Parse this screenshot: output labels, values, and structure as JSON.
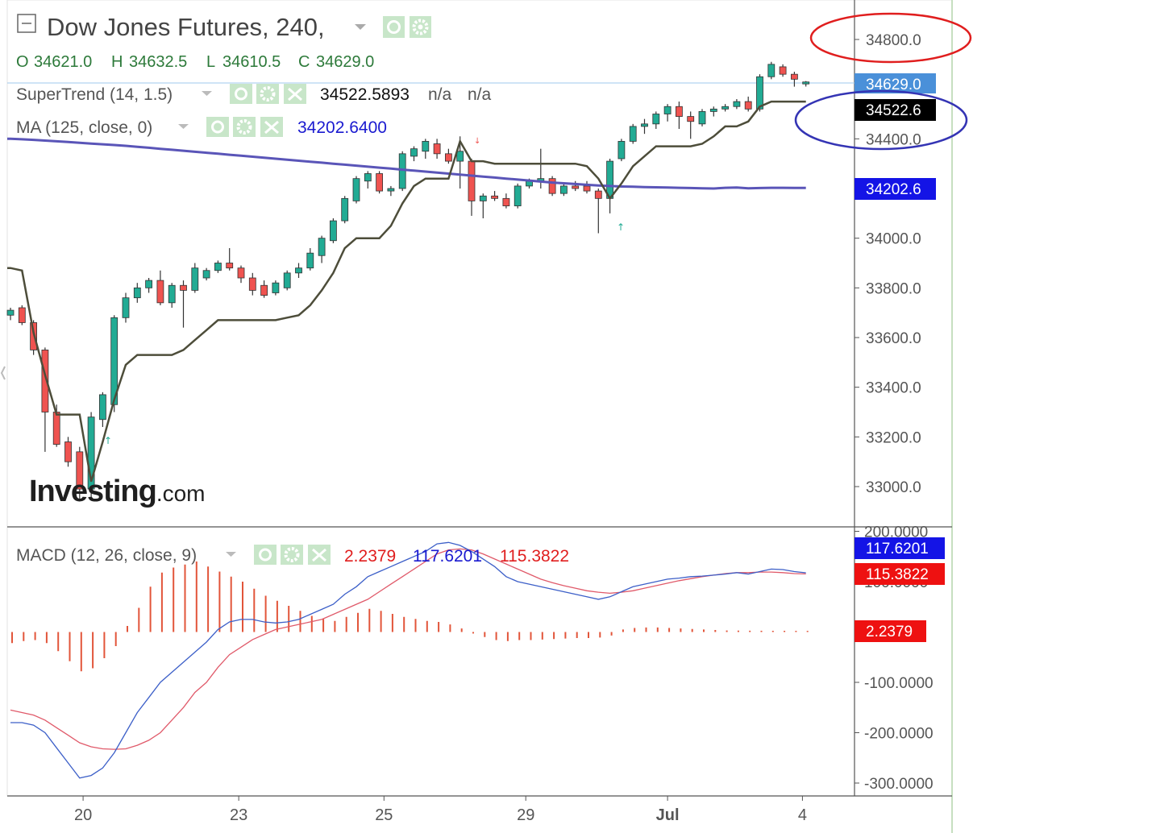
{
  "header": {
    "symbol_title": "Dow Jones Futures, 240,",
    "ohlc": {
      "o_label": "O",
      "o_value": "34621.0",
      "h_label": "H",
      "h_value": "34632.5",
      "l_label": "L",
      "l_value": "34610.5",
      "c_label": "C",
      "c_value": "34629.0"
    }
  },
  "indicators": {
    "supertrend": {
      "label": "SuperTrend (14, 1.5)",
      "value": "34522.5893",
      "extra1": "n/a",
      "extra2": "n/a"
    },
    "ma": {
      "label": "MA (125, close, 0)",
      "value": "34202.6400"
    },
    "macd": {
      "label": "MACD (12, 26, close, 9)",
      "hist": "2.2379",
      "macd": "117.6201",
      "signal": "115.3822"
    }
  },
  "price_badges": {
    "last": "34629.0",
    "supertrend": "34522.6",
    "ma": "34202.6",
    "macd": "117.6201",
    "signal": "115.3822",
    "hist": "2.2379"
  },
  "colors": {
    "up": "#22ab94",
    "down": "#ef5350",
    "supertrend": "#4d4d3a",
    "ma": "#5a55b8",
    "macd_line": "#3c5fc8",
    "signal_line": "#e05a6a",
    "hist": "#e2553a",
    "last_badge": "#4a90d9",
    "ma_badge": "#1414e6",
    "hist_badge": "#ee1111"
  },
  "watermark": "Investing.com",
  "chart_data": [
    {
      "type": "candlestick",
      "title": "Dow Jones Futures, 240,",
      "x_tick_labels": [
        "20",
        "23",
        "25",
        "29",
        "Jul",
        "4"
      ],
      "y_tick_labels": [
        "34800.0",
        "34629.0",
        "34400.0",
        "34000.0",
        "33800.0",
        "33600.0",
        "33400.0",
        "33200.0",
        "33000.0"
      ],
      "ylim": [
        32850,
        34950
      ],
      "candles": [
        {
          "o": 33690,
          "h": 33720,
          "l": 33670,
          "c": 33710
        },
        {
          "o": 33720,
          "h": 33730,
          "l": 33650,
          "c": 33660
        },
        {
          "o": 33660,
          "h": 33670,
          "l": 33530,
          "c": 33550
        },
        {
          "o": 33550,
          "h": 33560,
          "l": 33140,
          "c": 33300
        },
        {
          "o": 33300,
          "h": 33330,
          "l": 33160,
          "c": 33170
        },
        {
          "o": 33180,
          "h": 33200,
          "l": 33080,
          "c": 33100
        },
        {
          "o": 33140,
          "h": 33160,
          "l": 32950,
          "c": 32990
        },
        {
          "o": 32990,
          "h": 33300,
          "l": 32960,
          "c": 33280
        },
        {
          "o": 33270,
          "h": 33380,
          "l": 33240,
          "c": 33370
        },
        {
          "o": 33330,
          "h": 33690,
          "l": 33300,
          "c": 33680
        },
        {
          "o": 33680,
          "h": 33780,
          "l": 33660,
          "c": 33760
        },
        {
          "o": 33760,
          "h": 33820,
          "l": 33740,
          "c": 33800
        },
        {
          "o": 33800,
          "h": 33840,
          "l": 33780,
          "c": 33830
        },
        {
          "o": 33830,
          "h": 33870,
          "l": 33730,
          "c": 33740
        },
        {
          "o": 33740,
          "h": 33820,
          "l": 33720,
          "c": 33810
        },
        {
          "o": 33810,
          "h": 33830,
          "l": 33640,
          "c": 33790
        },
        {
          "o": 33790,
          "h": 33900,
          "l": 33780,
          "c": 33880
        },
        {
          "o": 33840,
          "h": 33880,
          "l": 33830,
          "c": 33870
        },
        {
          "o": 33870,
          "h": 33910,
          "l": 33860,
          "c": 33900
        },
        {
          "o": 33900,
          "h": 33960,
          "l": 33870,
          "c": 33880
        },
        {
          "o": 33880,
          "h": 33890,
          "l": 33820,
          "c": 33840
        },
        {
          "o": 33840,
          "h": 33860,
          "l": 33770,
          "c": 33790
        },
        {
          "o": 33810,
          "h": 33830,
          "l": 33760,
          "c": 33770
        },
        {
          "o": 33780,
          "h": 33830,
          "l": 33770,
          "c": 33820
        },
        {
          "o": 33800,
          "h": 33870,
          "l": 33790,
          "c": 33860
        },
        {
          "o": 33860,
          "h": 33900,
          "l": 33840,
          "c": 33880
        },
        {
          "o": 33880,
          "h": 33960,
          "l": 33870,
          "c": 33940
        },
        {
          "o": 33930,
          "h": 34010,
          "l": 33900,
          "c": 34000
        },
        {
          "o": 33990,
          "h": 34080,
          "l": 33980,
          "c": 34070
        },
        {
          "o": 34070,
          "h": 34170,
          "l": 34060,
          "c": 34160
        },
        {
          "o": 34150,
          "h": 34250,
          "l": 34140,
          "c": 34240
        },
        {
          "o": 34230,
          "h": 34270,
          "l": 34200,
          "c": 34260
        },
        {
          "o": 34260,
          "h": 34270,
          "l": 34180,
          "c": 34190
        },
        {
          "o": 34190,
          "h": 34210,
          "l": 34170,
          "c": 34200
        },
        {
          "o": 34200,
          "h": 34350,
          "l": 34190,
          "c": 34340
        },
        {
          "o": 34330,
          "h": 34370,
          "l": 34310,
          "c": 34360
        },
        {
          "o": 34350,
          "h": 34400,
          "l": 34320,
          "c": 34390
        },
        {
          "o": 34380,
          "h": 34400,
          "l": 34320,
          "c": 34340
        },
        {
          "o": 34340,
          "h": 34360,
          "l": 34300,
          "c": 34310
        },
        {
          "o": 34310,
          "h": 34410,
          "l": 34200,
          "c": 34350
        },
        {
          "o": 34310,
          "h": 34320,
          "l": 34090,
          "c": 34150
        },
        {
          "o": 34150,
          "h": 34180,
          "l": 34080,
          "c": 34170
        },
        {
          "o": 34170,
          "h": 34190,
          "l": 34150,
          "c": 34160
        },
        {
          "o": 34160,
          "h": 34180,
          "l": 34120,
          "c": 34130
        },
        {
          "o": 34130,
          "h": 34220,
          "l": 34120,
          "c": 34210
        },
        {
          "o": 34210,
          "h": 34240,
          "l": 34200,
          "c": 34230
        },
        {
          "o": 34230,
          "h": 34360,
          "l": 34200,
          "c": 34240
        },
        {
          "o": 34240,
          "h": 34250,
          "l": 34170,
          "c": 34180
        },
        {
          "o": 34180,
          "h": 34220,
          "l": 34170,
          "c": 34210
        },
        {
          "o": 34210,
          "h": 34230,
          "l": 34190,
          "c": 34200
        },
        {
          "o": 34210,
          "h": 34230,
          "l": 34180,
          "c": 34190
        },
        {
          "o": 34190,
          "h": 34200,
          "l": 34020,
          "c": 34160
        },
        {
          "o": 34160,
          "h": 34320,
          "l": 34100,
          "c": 34310
        },
        {
          "o": 34320,
          "h": 34400,
          "l": 34310,
          "c": 34390
        },
        {
          "o": 34390,
          "h": 34460,
          "l": 34380,
          "c": 34450
        },
        {
          "o": 34450,
          "h": 34480,
          "l": 34420,
          "c": 34460
        },
        {
          "o": 34460,
          "h": 34510,
          "l": 34440,
          "c": 34500
        },
        {
          "o": 34500,
          "h": 34540,
          "l": 34470,
          "c": 34530
        },
        {
          "o": 34530,
          "h": 34550,
          "l": 34440,
          "c": 34490
        },
        {
          "o": 34490,
          "h": 34510,
          "l": 34400,
          "c": 34470
        },
        {
          "o": 34460,
          "h": 34520,
          "l": 34450,
          "c": 34510
        },
        {
          "o": 34510,
          "h": 34530,
          "l": 34490,
          "c": 34520
        },
        {
          "o": 34520,
          "h": 34540,
          "l": 34510,
          "c": 34530
        },
        {
          "o": 34530,
          "h": 34560,
          "l": 34520,
          "c": 34550
        },
        {
          "o": 34550,
          "h": 34570,
          "l": 34510,
          "c": 34520
        },
        {
          "o": 34520,
          "h": 34660,
          "l": 34510,
          "c": 34650
        },
        {
          "o": 34650,
          "h": 34710,
          "l": 34640,
          "c": 34700
        },
        {
          "o": 34690,
          "h": 34700,
          "l": 34650,
          "c": 34660
        },
        {
          "o": 34660,
          "h": 34670,
          "l": 34610,
          "c": 34640
        },
        {
          "o": 34621,
          "h": 34632.5,
          "l": 34610.5,
          "c": 34629
        }
      ],
      "supertrend": [
        33880,
        33870,
        33620,
        33450,
        33290,
        33290,
        33290,
        33020,
        33180,
        33350,
        33490,
        33530,
        33530,
        33530,
        33530,
        33550,
        33590,
        33630,
        33670,
        33670,
        33670,
        33670,
        33670,
        33670,
        33680,
        33690,
        33730,
        33790,
        33860,
        33960,
        34000,
        34000,
        34000,
        34050,
        34140,
        34210,
        34240,
        34240,
        34240,
        34390,
        34310,
        34310,
        34300,
        34300,
        34300,
        34300,
        34300,
        34300,
        34300,
        34300,
        34290,
        34240,
        34160,
        34220,
        34290,
        34330,
        34370,
        34370,
        34370,
        34370,
        34380,
        34410,
        34450,
        34450,
        34470,
        34530,
        34550,
        34550,
        34550,
        34550
      ],
      "ma": [
        34400,
        34398,
        34396,
        34393,
        34390,
        34387,
        34384,
        34381,
        34378,
        34375,
        34372,
        34368,
        34364,
        34360,
        34356,
        34352,
        34348,
        34344,
        34340,
        34336,
        34332,
        34328,
        34324,
        34320,
        34316,
        34312,
        34308,
        34304,
        34300,
        34296,
        34292,
        34288,
        34284,
        34280,
        34276,
        34272,
        34268,
        34264,
        34260,
        34256,
        34252,
        34248,
        34244,
        34240,
        34236,
        34232,
        34228,
        34224,
        34221,
        34218,
        34215,
        34212,
        34210,
        34208,
        34207,
        34206,
        34205,
        34204,
        34203,
        34202,
        34201,
        34200,
        34203,
        34204,
        34201,
        34202,
        34203,
        34203,
        34202.6,
        34202.6
      ]
    },
    {
      "type": "line",
      "title": "MACD (12, 26, close, 9)",
      "y_tick_labels": [
        "200.0000",
        "100.0000",
        "-100.0000",
        "-200.0000",
        "-300.0000"
      ],
      "ylim": [
        -330,
        230
      ],
      "series": [
        {
          "name": "MACD",
          "values": [
            -180,
            -180,
            -185,
            -200,
            -230,
            -260,
            -290,
            -285,
            -270,
            -240,
            -200,
            -160,
            -130,
            -100,
            -80,
            -60,
            -40,
            -20,
            5,
            20,
            25,
            25,
            20,
            18,
            20,
            25,
            35,
            45,
            55,
            75,
            90,
            110,
            120,
            130,
            140,
            150,
            160,
            175,
            178,
            172,
            160,
            145,
            130,
            110,
            100,
            95,
            90,
            85,
            80,
            75,
            70,
            65,
            70,
            80,
            90,
            95,
            100,
            105,
            107,
            110,
            111,
            113,
            115,
            118,
            115,
            120,
            125,
            124,
            120,
            117.6
          ]
        },
        {
          "name": "Signal",
          "values": [
            -155,
            -160,
            -165,
            -175,
            -190,
            -205,
            -220,
            -228,
            -232,
            -233,
            -232,
            -225,
            -215,
            -200,
            -175,
            -150,
            -120,
            -100,
            -70,
            -45,
            -30,
            -15,
            -5,
            5,
            10,
            15,
            20,
            25,
            35,
            45,
            55,
            65,
            80,
            95,
            110,
            125,
            140,
            155,
            163,
            165,
            163,
            155,
            145,
            135,
            125,
            115,
            105,
            98,
            92,
            87,
            82,
            79,
            77,
            79,
            82,
            87,
            92,
            97,
            102,
            106,
            110,
            113,
            116,
            118,
            118,
            119,
            119,
            118,
            116,
            115.4
          ]
        },
        {
          "name": "Histogram",
          "values": [
            -22,
            -18,
            -16,
            -22,
            -38,
            -58,
            -78,
            -72,
            -52,
            -28,
            12,
            48,
            90,
            118,
            128,
            134,
            140,
            130,
            120,
            110,
            100,
            86,
            72,
            62,
            52,
            42,
            32,
            26,
            22,
            30,
            38,
            46,
            42,
            36,
            30,
            26,
            22,
            20,
            15,
            7,
            -3,
            -10,
            -16,
            -18,
            -16,
            -16,
            -15,
            -14,
            -13,
            -12,
            -12,
            -11,
            -7,
            5,
            8,
            9,
            9,
            8,
            7,
            6,
            5,
            4,
            3,
            2.8,
            2.6,
            2.5,
            2.4,
            2.4,
            2.3,
            2.2379
          ]
        }
      ],
      "x_tick_labels": [
        "20",
        "23",
        "25",
        "29",
        "Jul",
        "4"
      ]
    }
  ]
}
